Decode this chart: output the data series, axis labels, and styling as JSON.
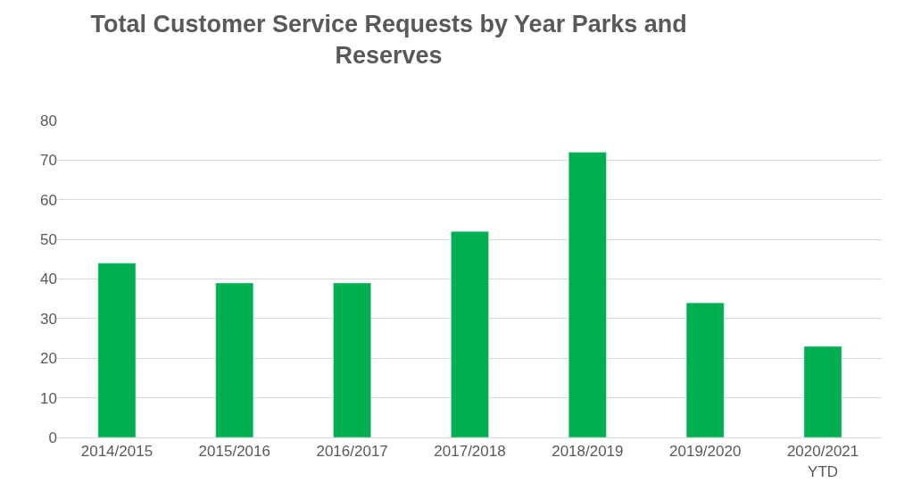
{
  "chart_data": {
    "type": "bar",
    "title": "Total Customer Service Requests by Year Parks and Reserves",
    "categories": [
      "2014/2015",
      "2015/2016",
      "2016/2017",
      "2017/2018",
      "2018/2019",
      "2019/2020",
      "2020/2021 YTD"
    ],
    "values": [
      44,
      39,
      39,
      52,
      72,
      34,
      23
    ],
    "color": "#00b050",
    "ylim": [
      0,
      80
    ],
    "yticks": [
      0,
      10,
      20,
      30,
      40,
      50,
      60,
      70,
      80
    ],
    "grid": "y"
  }
}
